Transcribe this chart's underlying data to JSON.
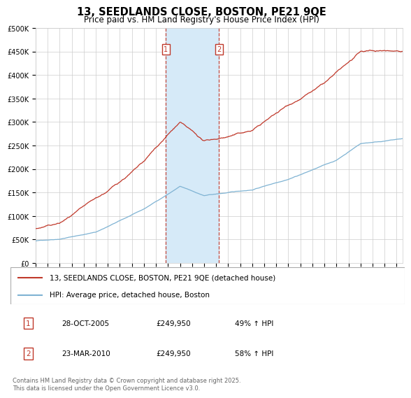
{
  "title": "13, SEEDLANDS CLOSE, BOSTON, PE21 9QE",
  "subtitle": "Price paid vs. HM Land Registry's House Price Index (HPI)",
  "legend_line1": "13, SEEDLANDS CLOSE, BOSTON, PE21 9QE (detached house)",
  "legend_line2": "HPI: Average price, detached house, Boston",
  "sale1_date": "28-OCT-2005",
  "sale1_price": "£249,950",
  "sale1_hpi": "49% ↑ HPI",
  "sale2_date": "23-MAR-2010",
  "sale2_price": "£249,950",
  "sale2_hpi": "58% ↑ HPI",
  "footer": "Contains HM Land Registry data © Crown copyright and database right 2025.\nThis data is licensed under the Open Government Licence v3.0.",
  "sale1_year": 2005.83,
  "sale2_year": 2010.23,
  "hpi_color": "#7fb3d3",
  "price_color": "#c0392b",
  "shade_color": "#d6eaf8",
  "grid_color": "#cccccc",
  "bg_color": "#ffffff",
  "ymax": 500000,
  "ymin": 0,
  "xmin": 1995,
  "xmax": 2025.5,
  "ytick_labels": [
    "£0",
    "£50K",
    "£100K",
    "£150K",
    "£200K",
    "£250K",
    "£300K",
    "£350K",
    "£400K",
    "£450K",
    "£500K"
  ],
  "yticks": [
    0,
    50000,
    100000,
    150000,
    200000,
    250000,
    300000,
    350000,
    400000,
    450000,
    500000
  ],
  "xticks": [
    1995,
    1996,
    1997,
    1998,
    1999,
    2000,
    2001,
    2002,
    2003,
    2004,
    2005,
    2006,
    2007,
    2008,
    2009,
    2010,
    2011,
    2012,
    2013,
    2014,
    2015,
    2016,
    2017,
    2018,
    2019,
    2020,
    2021,
    2022,
    2023,
    2024,
    2025
  ]
}
